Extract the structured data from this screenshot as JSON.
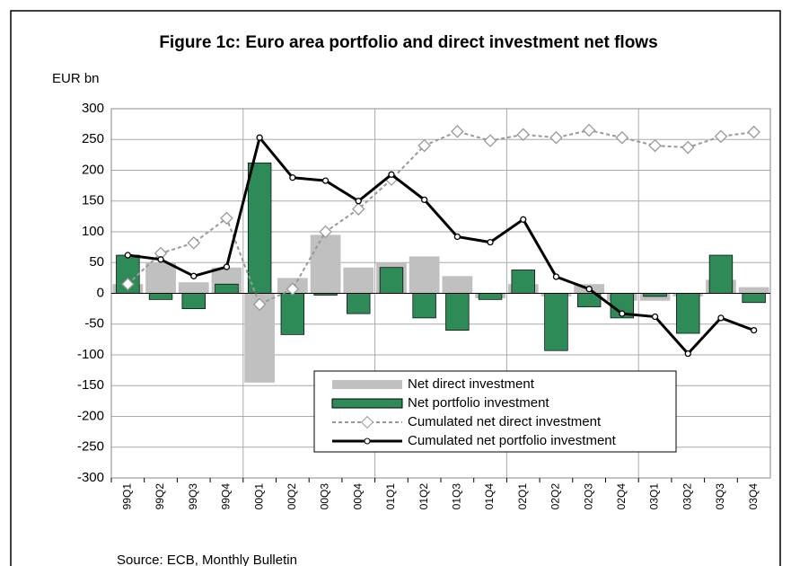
{
  "chart_data": {
    "type": "bar",
    "title": "Figure 1c: Euro area portfolio and direct investment net flows",
    "y_axis_label": "EUR bn",
    "source": "Source: ECB, Monthly Bulletin",
    "categories": [
      "99Q1",
      "99Q2",
      "99Q3",
      "99Q4",
      "00Q1",
      "00Q2",
      "00Q3",
      "00Q4",
      "01Q1",
      "01Q2",
      "01Q3",
      "01Q4",
      "02Q1",
      "02Q2",
      "02Q3",
      "02Q4",
      "03Q1",
      "03Q2",
      "03Q3",
      "03Q4"
    ],
    "ylim": [
      -300,
      300
    ],
    "yticks": [
      -300,
      -250,
      -200,
      -150,
      -100,
      -50,
      0,
      50,
      100,
      150,
      200,
      250,
      300
    ],
    "grid": true,
    "legend": "lower-right",
    "series": [
      {
        "name": "Net direct investment",
        "type": "bar",
        "color": "#c0c0c0",
        "values": [
          15,
          50,
          18,
          42,
          -145,
          25,
          95,
          42,
          50,
          60,
          28,
          -8,
          15,
          -5,
          15,
          -12,
          -12,
          -5,
          22,
          10
        ]
      },
      {
        "name": "Net portfolio investment",
        "type": "bar",
        "color": "#2e8b57",
        "values": [
          62,
          -10,
          -25,
          15,
          212,
          -67,
          -3,
          -33,
          42,
          -40,
          -60,
          -10,
          38,
          -93,
          -22,
          -40,
          -5,
          -65,
          62,
          -15
        ]
      },
      {
        "name": "Cumulated net direct investment",
        "type": "line",
        "dashed": true,
        "color": "#999999",
        "values": [
          15,
          65,
          82,
          122,
          -18,
          7,
          100,
          137,
          185,
          240,
          263,
          248,
          258,
          253,
          265,
          253,
          240,
          237,
          255,
          262
        ]
      },
      {
        "name": "Cumulated net portfolio investment",
        "type": "line",
        "dashed": false,
        "color": "#000000",
        "values": [
          62,
          55,
          28,
          43,
          253,
          188,
          183,
          150,
          193,
          152,
          92,
          83,
          120,
          27,
          7,
          -33,
          -38,
          -98,
          -40,
          -60
        ]
      }
    ]
  }
}
